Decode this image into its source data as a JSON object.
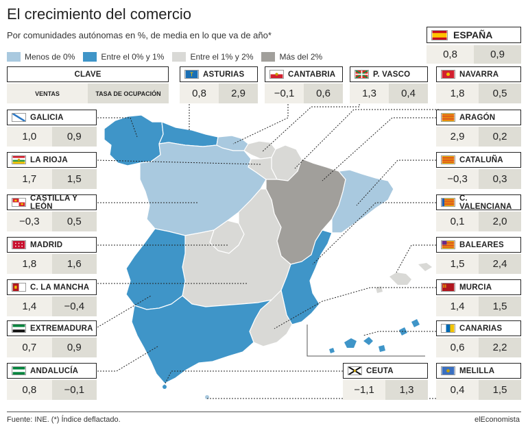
{
  "title": "El crecimiento del comercio",
  "subtitle": "Por comunidades autónomas en %, de media en lo que va de año*",
  "legend": [
    {
      "label": "Menos de 0%",
      "color": "#a9c9df"
    },
    {
      "label": "Entre el 0% y 1%",
      "color": "#3f95c8"
    },
    {
      "label": "Entre el 1% y 2%",
      "color": "#d9d9d6"
    },
    {
      "label": "Más del 2%",
      "color": "#a19f9b"
    }
  ],
  "clave": {
    "title": "CLAVE",
    "ventas": "VENTAS",
    "ocupacion": "TASA DE OCUPACIÓN"
  },
  "espana": {
    "name": "ESPAÑA",
    "ventas": "0,8",
    "ocupacion": "0,9"
  },
  "regions": {
    "asturias": {
      "name": "ASTURIAS",
      "ventas": "0,8",
      "ocupacion": "2,9"
    },
    "cantabria": {
      "name": "CANTABRIA",
      "ventas": "−0,1",
      "ocupacion": "0,6"
    },
    "pvasco": {
      "name": "P. VASCO",
      "ventas": "1,3",
      "ocupacion": "0,4"
    },
    "navarra": {
      "name": "NAVARRA",
      "ventas": "1,8",
      "ocupacion": "0,5"
    },
    "galicia": {
      "name": "GALICIA",
      "ventas": "1,0",
      "ocupacion": "0,9"
    },
    "larioja": {
      "name": "LA RIOJA",
      "ventas": "1,7",
      "ocupacion": "1,5"
    },
    "cyl": {
      "name": "CASTILLA Y LEÓN",
      "ventas": "−0,3",
      "ocupacion": "0,5"
    },
    "madrid": {
      "name": "MADRID",
      "ventas": "1,8",
      "ocupacion": "1,6"
    },
    "clm": {
      "name": "C. LA MANCHA",
      "ventas": "1,4",
      "ocupacion": "−0,4"
    },
    "extremadura": {
      "name": "EXTREMADURA",
      "ventas": "0,7",
      "ocupacion": "0,9"
    },
    "andalucia": {
      "name": "ANDALUCÍA",
      "ventas": "0,8",
      "ocupacion": "−0,1"
    },
    "aragon": {
      "name": "ARAGÓN",
      "ventas": "2,9",
      "ocupacion": "0,2"
    },
    "cataluna": {
      "name": "CATALUÑA",
      "ventas": "−0,3",
      "ocupacion": "0,3"
    },
    "cvalenciana": {
      "name": "C. VALENCIANA",
      "ventas": "0,1",
      "ocupacion": "2,0"
    },
    "baleares": {
      "name": "BALEARES",
      "ventas": "1,5",
      "ocupacion": "2,4"
    },
    "murcia": {
      "name": "MURCIA",
      "ventas": "1,4",
      "ocupacion": "1,5"
    },
    "canarias": {
      "name": "CANARIAS",
      "ventas": "0,6",
      "ocupacion": "2,2"
    },
    "ceuta": {
      "name": "CEUTA",
      "ventas": "−1,1",
      "ocupacion": "1,3"
    },
    "melilla": {
      "name": "MELILLA",
      "ventas": "0,4",
      "ocupacion": "1,5"
    }
  },
  "footer": "Fuente: INE. (*) Índice deflactado.",
  "brand": "elEconomista"
}
